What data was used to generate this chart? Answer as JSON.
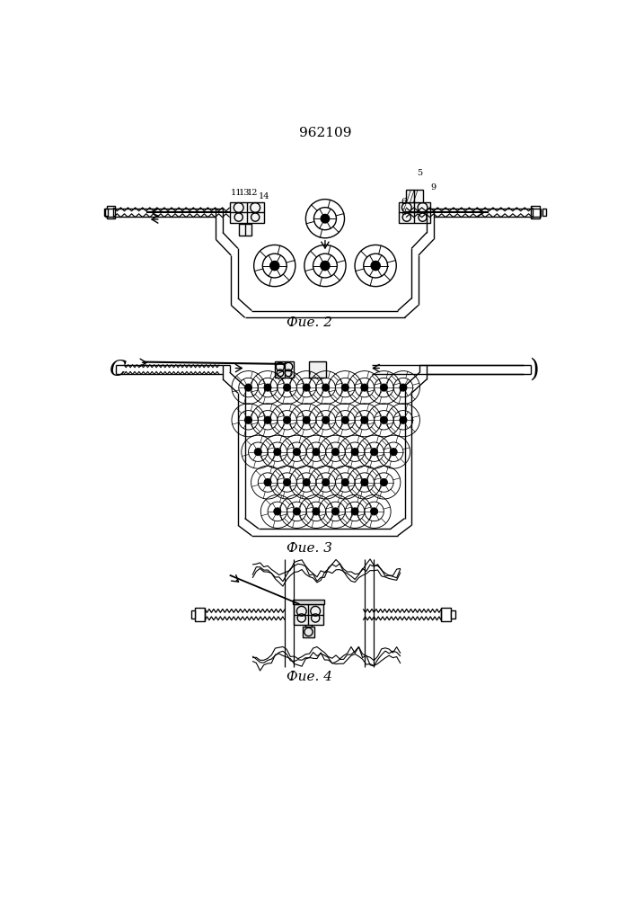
{
  "title": "962109",
  "fig2_caption": "Фие. 2",
  "fig3_caption": "Фие. 3",
  "fig4_caption": "Фие. 4",
  "line_color": "#000000",
  "bg_color": "#ffffff",
  "line_width": 1.0,
  "title_fontsize": 11,
  "caption_fontsize": 11
}
